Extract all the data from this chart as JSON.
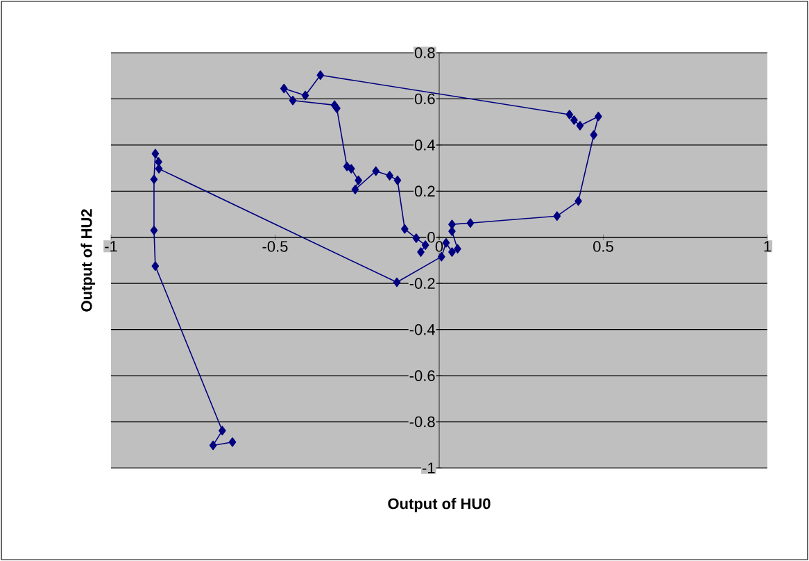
{
  "chart_data": {
    "type": "line",
    "xlabel": "Output of HU0",
    "ylabel": "Output of HU2",
    "xlim": [
      -1,
      1
    ],
    "ylim": [
      -1,
      0.8
    ],
    "xticks": [
      -1,
      -0.5,
      0,
      0.5,
      1
    ],
    "yticks": [
      -1,
      -0.8,
      -0.6,
      -0.4,
      -0.2,
      0,
      0.2,
      0.4,
      0.6,
      0.8
    ],
    "grid": "y",
    "legend": false,
    "marker": "diamond",
    "line_style": "solid",
    "series": [
      {
        "color": "#000080",
        "x": [
          -0.63,
          -0.689,
          -0.661,
          -0.865,
          -0.869,
          -0.869,
          -0.865,
          -0.855,
          -0.854,
          -0.129,
          0.007,
          0.021,
          0.039,
          0.056,
          0.039,
          0.039,
          0.095,
          0.359,
          0.424,
          0.471,
          0.485,
          0.429,
          0.411,
          0.397,
          -0.362,
          -0.408,
          -0.473,
          -0.446,
          -0.319,
          -0.312,
          -0.281,
          -0.268,
          -0.246,
          -0.256,
          -0.193,
          -0.151,
          -0.127,
          -0.105,
          -0.07,
          -0.042,
          -0.056
        ],
        "values": [
          -0.888,
          -0.902,
          -0.838,
          -0.125,
          0.03,
          0.251,
          0.363,
          0.327,
          0.297,
          -0.195,
          -0.084,
          -0.024,
          -0.064,
          -0.05,
          0.026,
          0.056,
          0.062,
          0.092,
          0.157,
          0.444,
          0.524,
          0.484,
          0.508,
          0.532,
          0.703,
          0.615,
          0.645,
          0.593,
          0.573,
          0.559,
          0.307,
          0.297,
          0.247,
          0.207,
          0.287,
          0.267,
          0.247,
          0.036,
          -0.004,
          -0.034,
          -0.064
        ]
      }
    ]
  }
}
